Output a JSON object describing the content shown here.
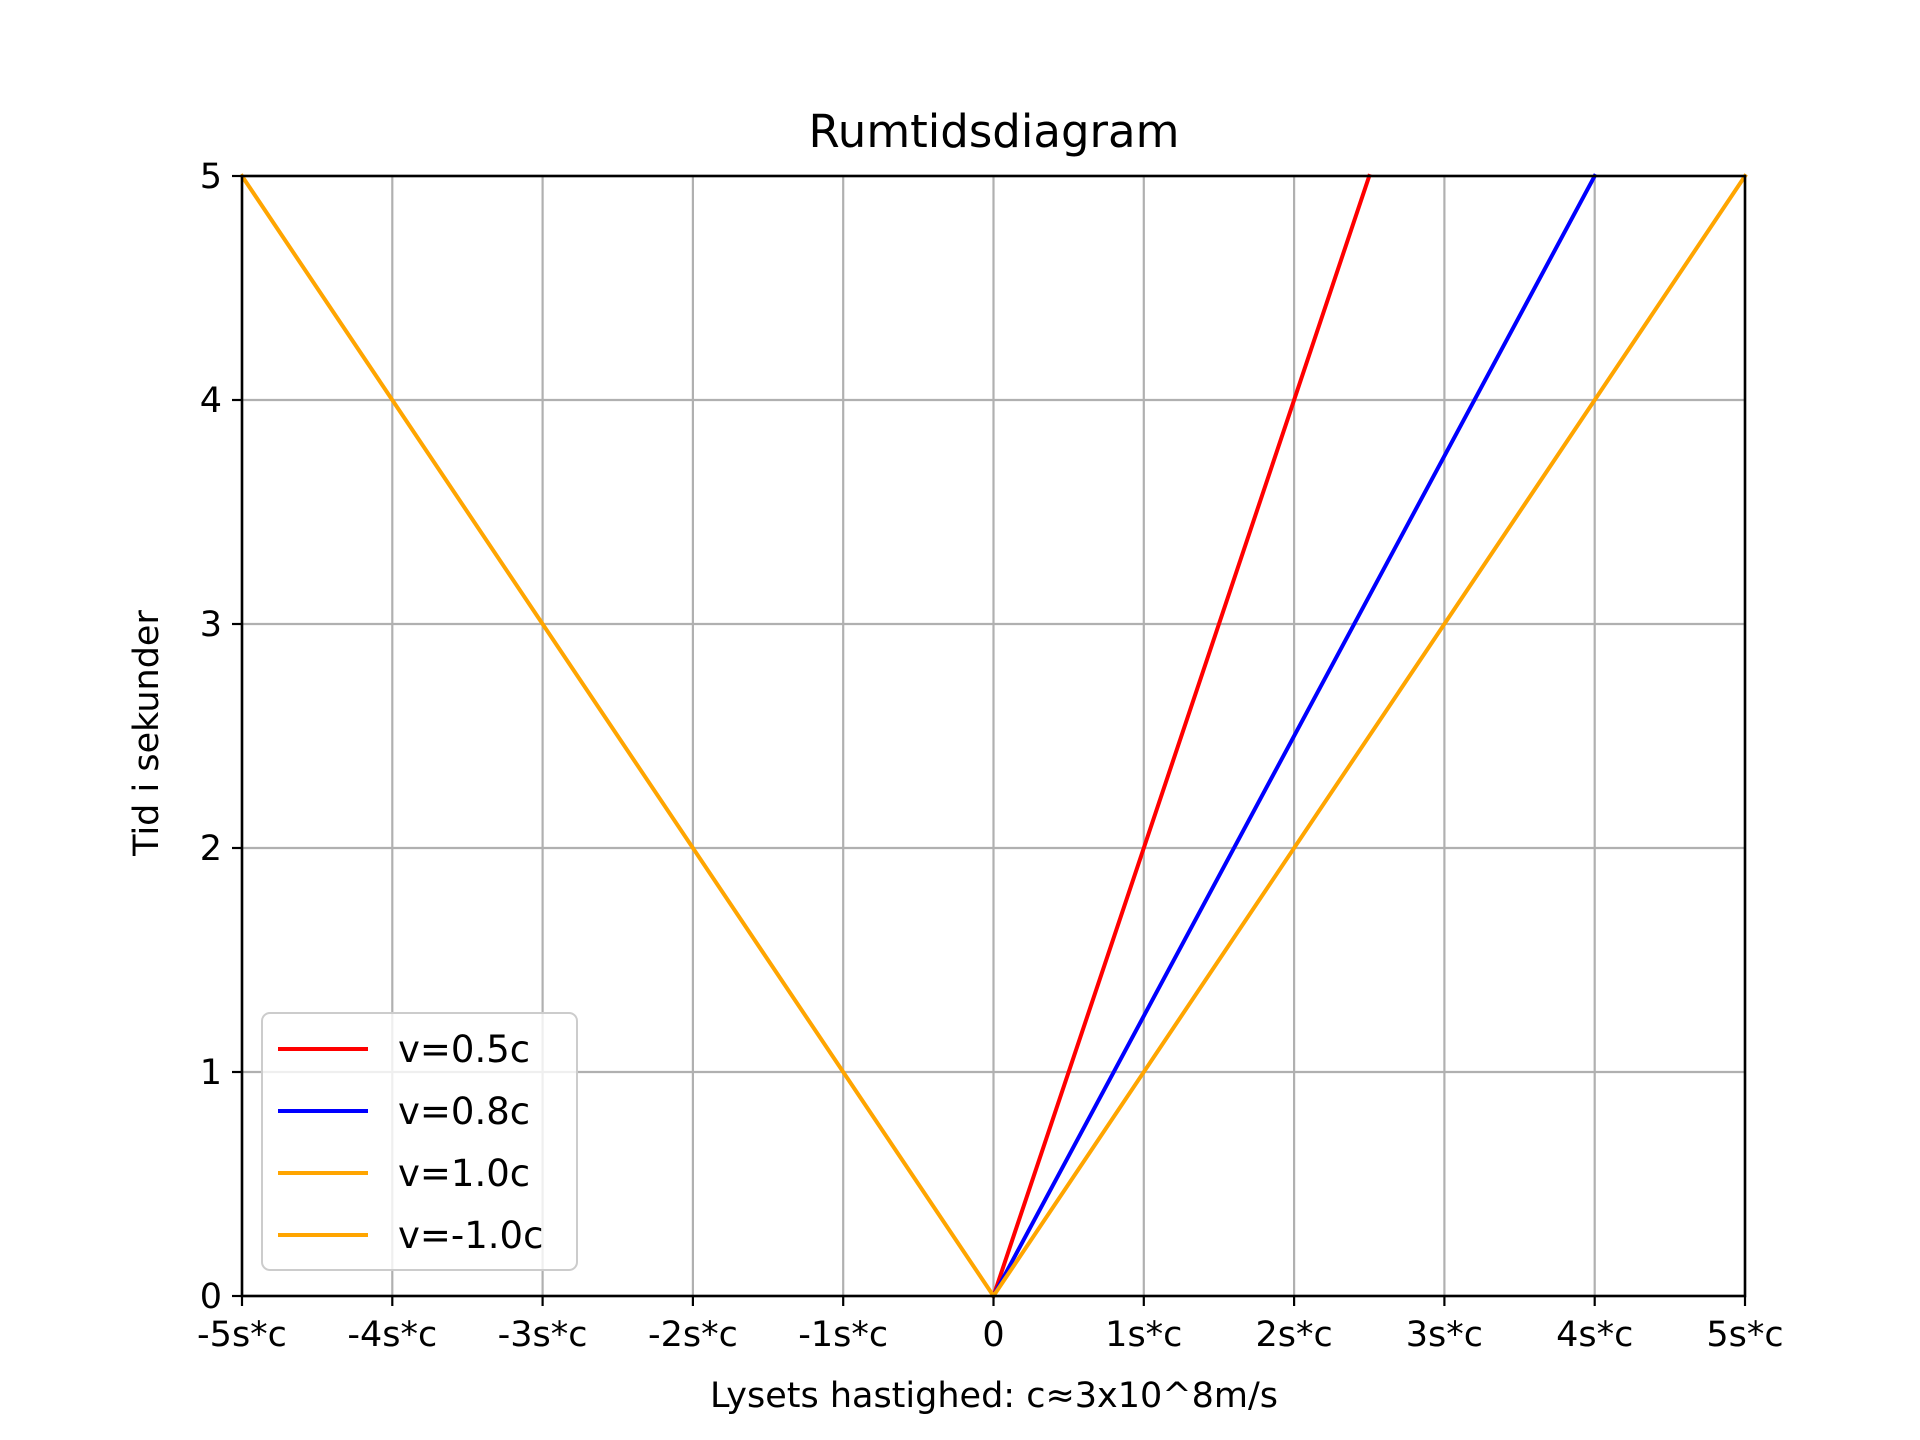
{
  "chart_data": {
    "type": "line",
    "title": "Rumtidsdiagram",
    "xlabel": "Lysets hastighed: c≈3x10^8m/s",
    "ylabel": "Tid i sekunder",
    "xlim": [
      -5,
      5
    ],
    "ylim": [
      0,
      5
    ],
    "grid": true,
    "legend_position": "lower-left",
    "xticks": [
      -5,
      -4,
      -3,
      -2,
      -1,
      0,
      1,
      2,
      3,
      4,
      5
    ],
    "xtick_labels": [
      "-5s*c",
      "-4s*c",
      "-3s*c",
      "-2s*c",
      "-1s*c",
      "0",
      "1s*c",
      "2s*c",
      "3s*c",
      "4s*c",
      "5s*c"
    ],
    "yticks": [
      0,
      1,
      2,
      3,
      4,
      5
    ],
    "ytick_labels": [
      "0",
      "1",
      "2",
      "3",
      "4",
      "5"
    ],
    "series": [
      {
        "name": "v=0.5c",
        "color": "#ff0000",
        "x": [
          0,
          2.5
        ],
        "y": [
          0,
          5
        ]
      },
      {
        "name": "v=0.8c",
        "color": "#0000ff",
        "x": [
          0,
          4
        ],
        "y": [
          0,
          5
        ]
      },
      {
        "name": "v=1.0c",
        "color": "#ffa500",
        "x": [
          0,
          5
        ],
        "y": [
          0,
          5
        ]
      },
      {
        "name": "v=-1.0c",
        "color": "#ffa500",
        "x": [
          0,
          -5
        ],
        "y": [
          0,
          5
        ]
      }
    ]
  }
}
